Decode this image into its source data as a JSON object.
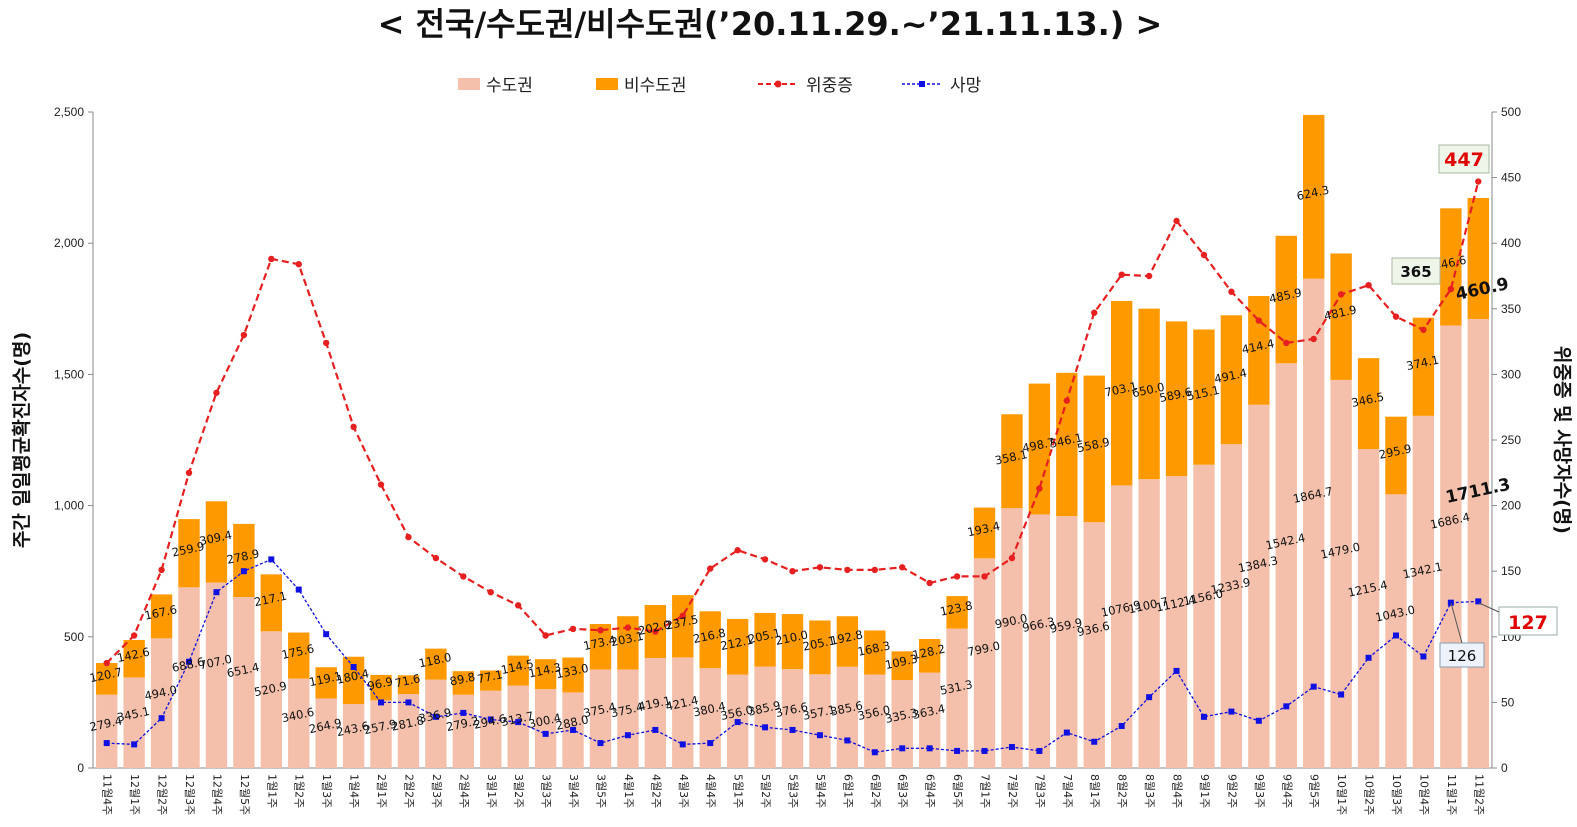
{
  "chart_data": {
    "type": "bar",
    "title": "< 전국/수도권/비수도권(’20.11.29.~’21.11.13.) >",
    "ylabel_left": "주간 일일평균확진자수(명)",
    "ylabel_right": "위중증 및 사망자수(명)",
    "ylim_left": [
      0,
      2500
    ],
    "ylim_right": [
      0,
      500
    ],
    "yticks_left": [
      "0",
      "500",
      "1,000",
      "1,500",
      "2,000",
      "2,500"
    ],
    "yticks_right": [
      "0",
      "50",
      "100",
      "150",
      "200",
      "250",
      "300",
      "350",
      "400",
      "450",
      "500"
    ],
    "categories": [
      "11월4주",
      "12월1주",
      "12월2주",
      "12월3주",
      "12월4주",
      "12월5주",
      "1월1주",
      "1월2주",
      "1월3주",
      "1월4주",
      "2월1주",
      "2월2주",
      "2월3주",
      "2월4주",
      "3월1주",
      "3월2주",
      "3월3주",
      "3월4주",
      "3월5주",
      "4월1주",
      "4월2주",
      "4월3주",
      "4월4주",
      "5월1주",
      "5월2주",
      "5월3주",
      "5월4주",
      "6월1주",
      "6월2주",
      "6월3주",
      "6월4주",
      "6월5주",
      "7월1주",
      "7월2주",
      "7월3주",
      "7월4주",
      "8월1주",
      "8월2주",
      "8월3주",
      "8월4주",
      "9월1주",
      "9월2주",
      "9월3주",
      "9월4주",
      "9월5주",
      "10월1주",
      "10월2주",
      "10월3주",
      "10월4주",
      "11월1주",
      "11월2주"
    ],
    "series": [
      {
        "name": "수도권",
        "type": "bar",
        "color": "#f4c0ac",
        "values": [
          279.4,
          345.1,
          494.0,
          688.6,
          707.0,
          651.4,
          520.9,
          340.6,
          264.9,
          243.6,
          257.9,
          281.8,
          336.9,
          279.2,
          294.6,
          313.7,
          300.4,
          288.0,
          375.4,
          375.4,
          419.1,
          421.4,
          380.4,
          356.0,
          385.9,
          376.6,
          357.1,
          385.6,
          356.0,
          335.3,
          363.4,
          531.3,
          799.0,
          990.0,
          966.3,
          959.9,
          936.6,
          1076.9,
          1100.7,
          1112.4,
          1156.0,
          1233.9,
          1384.3,
          1542.4,
          1864.7,
          1479.0,
          1215.4,
          1043.0,
          1342.1,
          1686.4,
          1711.3
        ]
      },
      {
        "name": "비수도권",
        "type": "bar",
        "color": "#ff9900",
        "values": [
          120.7,
          142.6,
          167.6,
          259.9,
          309.4,
          278.9,
          217.1,
          175.6,
          119.1,
          180.4,
          96.9,
          71.6,
          118.0,
          89.8,
          77.1,
          114.5,
          114.3,
          133.0,
          173.4,
          203.1,
          202.0,
          237.5,
          216.8,
          212.1,
          205.1,
          210.0,
          205.1,
          192.8,
          168.3,
          109.3,
          128.2,
          123.8,
          193.4,
          358.1,
          498.7,
          546.1,
          558.9,
          703.1,
          650.0,
          589.6,
          515.1,
          491.4,
          414.4,
          485.9,
          624.3,
          481.9,
          346.5,
          295.9,
          374.1,
          446.6,
          460.9
        ]
      },
      {
        "name": "위중증",
        "type": "line",
        "axis": "right",
        "color": "#e62020",
        "values": [
          80,
          101,
          151,
          225,
          286,
          330,
          388,
          384,
          324,
          260,
          216,
          176,
          160,
          146,
          134,
          124,
          101,
          106,
          105,
          107,
          104,
          116,
          152,
          166,
          159,
          150,
          153,
          151,
          151,
          153,
          141,
          146,
          146,
          160,
          213,
          280,
          347,
          376,
          375,
          417,
          391,
          363,
          341,
          324,
          327,
          361,
          368,
          344,
          334,
          365,
          447
        ]
      },
      {
        "name": "사망",
        "type": "line",
        "axis": "right",
        "color": "#1010e0",
        "values": [
          19,
          18,
          38,
          81,
          134,
          150,
          159,
          136,
          102,
          77,
          50,
          50,
          39,
          42,
          37,
          35,
          26,
          29,
          19,
          25,
          29,
          18,
          19,
          35,
          31,
          29,
          25,
          21,
          12,
          15,
          15,
          13,
          13,
          16,
          13,
          27,
          20,
          32,
          54,
          74,
          39,
          43,
          36,
          47,
          62,
          56,
          84,
          101,
          85,
          126,
          127
        ]
      }
    ],
    "bar_labels_bottom": [
      "279.4",
      "345.1",
      "494.0",
      "688.6",
      "707.0",
      "651.4",
      "520.9",
      "340.6",
      "264.9",
      "243.6",
      "257.9",
      "281.8",
      "336.9",
      "279.2",
      "294.6",
      "313.7",
      "300.4",
      "288.0",
      "375.4",
      "375.4",
      "419.1",
      "421.4",
      "380.4",
      "356.0",
      "385.9",
      "376.6",
      "357.1",
      "385.6",
      "356.0",
      "335.3",
      "363.4",
      "531.3",
      "799.0",
      "990.0",
      "966.3",
      "959.9",
      "936.6",
      "1076.9",
      "1100.7",
      "1112.4",
      "1156.0",
      "1233.9",
      "1384.3",
      "1542.4",
      "1864.7",
      "1479.0",
      "1215.4",
      "1043.0",
      "1342.1",
      "1686.4",
      "1711.3"
    ],
    "bar_labels_top": [
      "120.7",
      "142.6",
      "167.6",
      "259.9",
      "309.4",
      "278.9",
      "217.1",
      "175.6",
      "119.1",
      "180.4",
      "96.9",
      "71.6",
      "118.0",
      "89.8",
      "77.1",
      "114.5",
      "114.3",
      "133.0",
      "173.4",
      "203.1",
      "202.0",
      "237.5",
      "216.8",
      "212.1",
      "205.1",
      "210.0",
      "205.1",
      "192.8",
      "168.3",
      "109.3",
      "128.2",
      "123.8",
      "193.4",
      "358.1",
      "498.7",
      "546.1",
      "558.9",
      "703.1",
      "650.0",
      "589.6",
      "515.1",
      "491.4",
      "414.4",
      "485.9",
      "624.3",
      "481.9",
      "346.5",
      "295.9",
      "374.1",
      "446.6",
      "460.9"
    ],
    "callouts": {
      "severe_last": "447",
      "severe_prev": "365",
      "death_last": "127",
      "death_prev": "126",
      "metro_last": "1711.3",
      "nonmetro_last": "460.9"
    },
    "legend_position": "top"
  }
}
